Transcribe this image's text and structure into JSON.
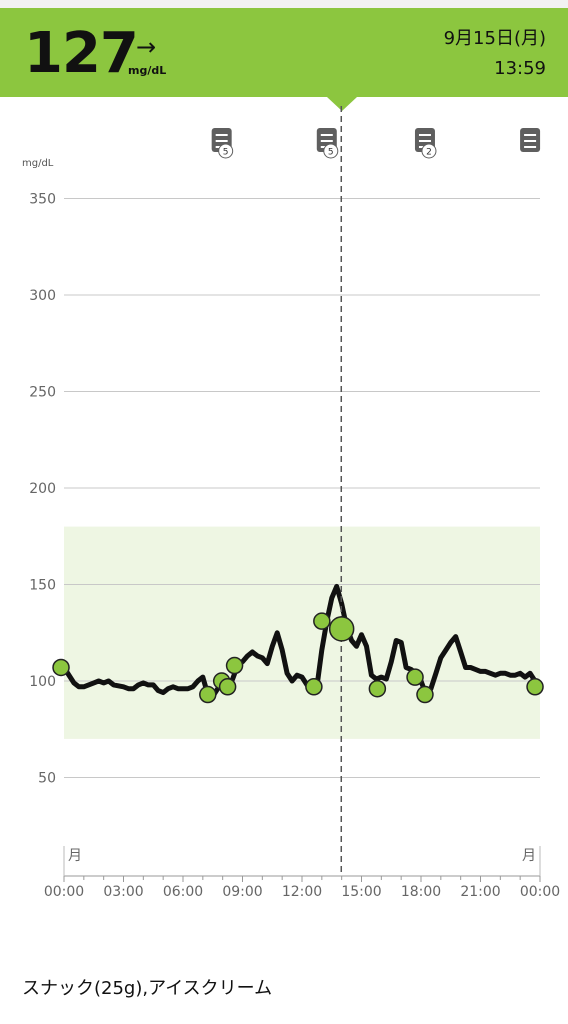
{
  "header": {
    "glucose_value": "127",
    "trend_arrow": "→",
    "unit": "mg/dL",
    "date": "9月15日(月)",
    "time": "13:59",
    "accent_color": "#8cc63f"
  },
  "chart_data": {
    "type": "line",
    "ylabel": "mg/dL",
    "ylim": [
      30,
      360
    ],
    "yticks": [
      "350",
      "300",
      "250",
      "200",
      "150",
      "100",
      "50"
    ],
    "ytick_values": [
      350,
      300,
      250,
      200,
      150,
      100,
      50
    ],
    "target_range": [
      70,
      180
    ],
    "xlim": [
      0,
      24
    ],
    "xticks": [
      "00:00",
      "03:00",
      "06:00",
      "09:00",
      "12:00",
      "15:00",
      "18:00",
      "21:00",
      "00:00"
    ],
    "xtick_values": [
      0,
      3,
      6,
      9,
      12,
      15,
      18,
      21,
      24
    ],
    "day_labels": [
      "月",
      "月"
    ],
    "cursor_time": 13.98,
    "grid": true,
    "line_color": "#111111",
    "marker_color": "#8cc63f",
    "band_color": "#eef6e3",
    "series": [
      {
        "values": [
          [
            0.0,
            107
          ],
          [
            0.5,
            99
          ],
          [
            0.75,
            97
          ],
          [
            1.0,
            97
          ],
          [
            1.5,
            99
          ],
          [
            1.75,
            100
          ],
          [
            2.0,
            99
          ],
          [
            2.25,
            100
          ],
          [
            2.5,
            98
          ],
          [
            3.0,
            97
          ],
          [
            3.25,
            96
          ],
          [
            3.5,
            96
          ],
          [
            3.75,
            98
          ],
          [
            4.0,
            99
          ],
          [
            4.25,
            98
          ],
          [
            4.5,
            98
          ],
          [
            4.75,
            95
          ],
          [
            5.0,
            94
          ],
          [
            5.25,
            96
          ],
          [
            5.5,
            97
          ],
          [
            5.75,
            96
          ],
          [
            6.0,
            96
          ],
          [
            6.25,
            96
          ],
          [
            6.5,
            97
          ],
          [
            6.75,
            100
          ],
          [
            7.0,
            102
          ],
          [
            7.25,
            93
          ],
          [
            7.5,
            92
          ],
          [
            7.75,
            96
          ],
          [
            8.0,
            100
          ],
          [
            8.25,
            98
          ],
          [
            8.5,
            101
          ],
          [
            8.75,
            108
          ],
          [
            9.0,
            110
          ],
          [
            9.25,
            113
          ],
          [
            9.5,
            115
          ],
          [
            9.75,
            113
          ],
          [
            10.0,
            112
          ],
          [
            10.25,
            109
          ],
          [
            10.5,
            118
          ],
          [
            10.75,
            125
          ],
          [
            11.0,
            116
          ],
          [
            11.25,
            104
          ],
          [
            11.5,
            100
          ],
          [
            11.75,
            103
          ],
          [
            12.0,
            102
          ],
          [
            12.25,
            98
          ],
          [
            12.5,
            96
          ],
          [
            12.75,
            97
          ],
          [
            13.0,
            116
          ],
          [
            13.25,
            131
          ],
          [
            13.5,
            143
          ],
          [
            13.75,
            149
          ],
          [
            14.0,
            140
          ],
          [
            14.25,
            128
          ],
          [
            14.5,
            121
          ],
          [
            14.75,
            118
          ],
          [
            15.0,
            124
          ],
          [
            15.25,
            118
          ],
          [
            15.5,
            103
          ],
          [
            15.75,
            101
          ],
          [
            16.0,
            102
          ],
          [
            16.25,
            101
          ],
          [
            16.5,
            110
          ],
          [
            16.75,
            121
          ],
          [
            17.0,
            120
          ],
          [
            17.25,
            107
          ],
          [
            17.5,
            106
          ],
          [
            17.75,
            104
          ],
          [
            18.0,
            100
          ],
          [
            18.25,
            93
          ],
          [
            18.5,
            96
          ],
          [
            18.75,
            104
          ],
          [
            19.0,
            112
          ],
          [
            19.25,
            116
          ],
          [
            19.5,
            120
          ],
          [
            19.75,
            123
          ],
          [
            20.0,
            115
          ],
          [
            20.25,
            107
          ],
          [
            20.5,
            107
          ],
          [
            20.75,
            106
          ],
          [
            21.0,
            105
          ],
          [
            21.25,
            105
          ],
          [
            21.5,
            104
          ],
          [
            21.75,
            103
          ],
          [
            22.0,
            104
          ],
          [
            22.25,
            104
          ],
          [
            22.5,
            103
          ],
          [
            22.75,
            103
          ],
          [
            23.0,
            104
          ],
          [
            23.25,
            102
          ],
          [
            23.5,
            104
          ],
          [
            23.75,
            100
          ],
          [
            24.0,
            97
          ]
        ]
      }
    ],
    "readings": [
      [
        -0.15,
        107
      ],
      [
        7.25,
        93
      ],
      [
        7.95,
        100
      ],
      [
        8.25,
        97
      ],
      [
        8.6,
        108
      ],
      [
        12.6,
        97
      ],
      [
        13.0,
        131
      ],
      [
        14.0,
        127
      ],
      [
        15.8,
        96
      ],
      [
        17.7,
        102
      ],
      [
        18.2,
        93
      ],
      [
        23.75,
        97
      ]
    ],
    "current_reading": [
      14.0,
      127
    ],
    "notes": [
      {
        "time": 7.95,
        "count": "5"
      },
      {
        "time": 13.25,
        "count": "5"
      },
      {
        "time": 18.2,
        "count": "2"
      },
      {
        "time": 23.5,
        "count": ""
      }
    ]
  },
  "footer": {
    "note_text": "スナック(25g),アイスクリーム"
  }
}
